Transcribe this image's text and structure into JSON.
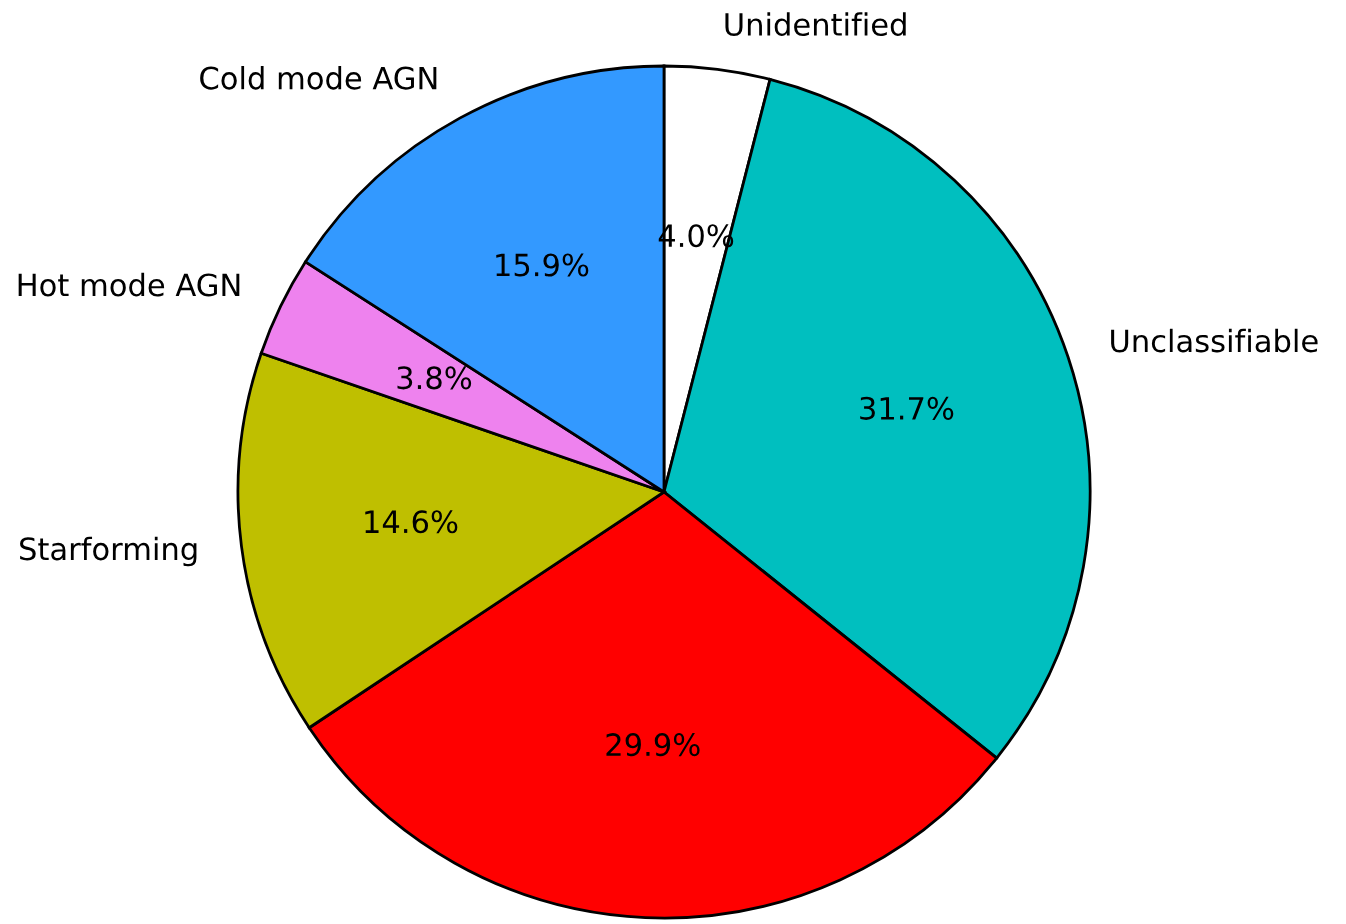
{
  "chart_data": {
    "type": "pie",
    "categories": [
      "Unidentified",
      "Unclassifiable",
      null,
      "Starforming",
      "Hot mode AGN",
      "Cold mode AGN"
    ],
    "values": [
      4.0,
      31.7,
      29.9,
      14.6,
      3.8,
      15.9
    ],
    "value_labels": [
      "4.0%",
      "31.7%",
      "29.9%",
      "14.6%",
      "3.8%",
      "15.9%"
    ],
    "colors": [
      "#ffffff",
      "#00bfbf",
      "#ff0000",
      "#bfbf00",
      "#ee82ee",
      "#3399ff"
    ]
  }
}
